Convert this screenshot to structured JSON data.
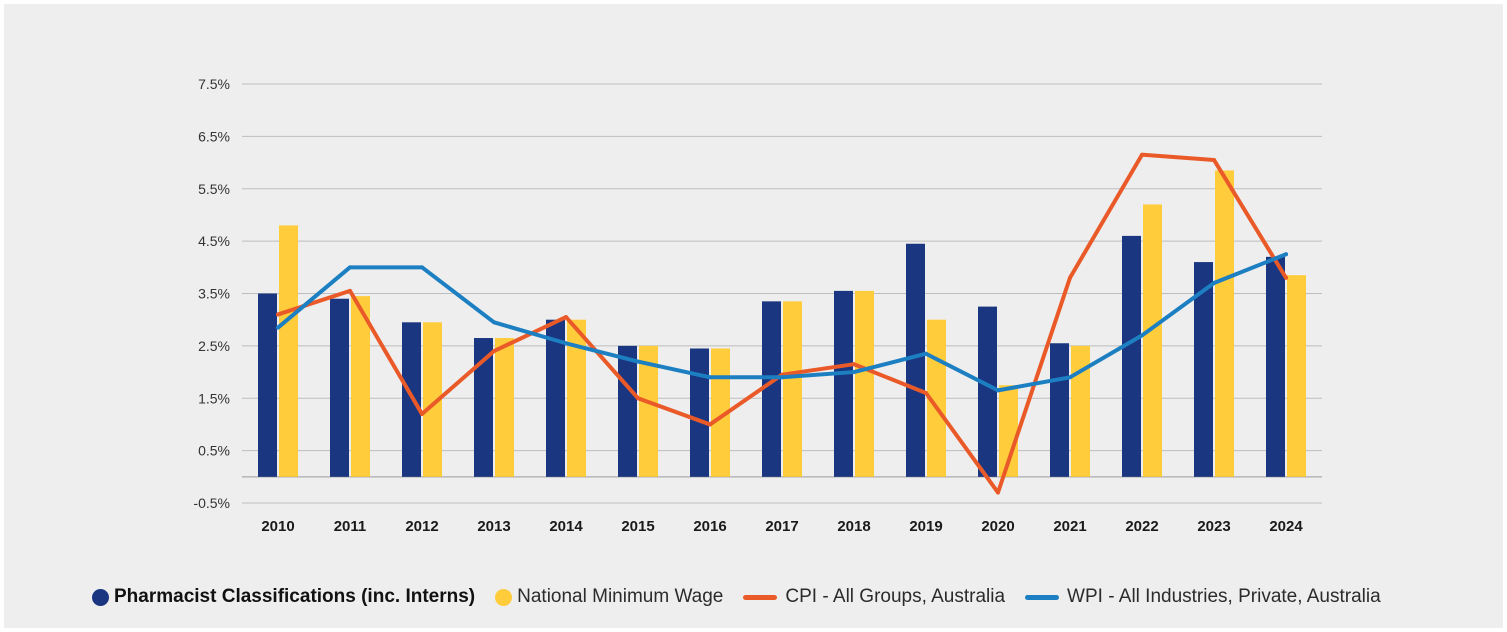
{
  "chart_data": {
    "type": "bar",
    "title": "",
    "xlabel": "",
    "ylabel": "",
    "categories": [
      "2010",
      "2011",
      "2012",
      "2013",
      "2014",
      "2015",
      "2016",
      "2017",
      "2018",
      "2019",
      "2020",
      "2021",
      "2022",
      "2023",
      "2024"
    ],
    "yticks": [
      "-0.5%",
      "0.5%",
      "1.5%",
      "2.5%",
      "3.5%",
      "4.5%",
      "5.5%",
      "6.5%",
      "7.5%"
    ],
    "ylim": [
      -0.5,
      7.5
    ],
    "grid": true,
    "legend_position": "bottom",
    "series": [
      {
        "name": "Pharmacist Classifications (inc. Interns)",
        "kind": "bar",
        "color": "#1b3680",
        "values": [
          3.5,
          3.4,
          2.95,
          2.65,
          3.0,
          2.5,
          2.45,
          3.35,
          3.55,
          4.45,
          3.25,
          2.55,
          4.6,
          4.1,
          4.2
        ]
      },
      {
        "name": "National Minimum Wage",
        "kind": "bar",
        "color": "#ffcc3c",
        "values": [
          4.8,
          3.45,
          2.95,
          2.65,
          3.0,
          2.5,
          2.45,
          3.35,
          3.55,
          3.0,
          1.75,
          2.5,
          5.2,
          5.85,
          3.85
        ]
      },
      {
        "name": "CPI - All Groups, Australia",
        "kind": "line",
        "color": "#ea5a28",
        "values": [
          3.1,
          3.55,
          1.2,
          2.4,
          3.05,
          1.5,
          1.0,
          1.95,
          2.15,
          1.6,
          -0.3,
          3.8,
          6.15,
          6.05,
          3.8
        ]
      },
      {
        "name": "WPI - All Industries, Private, Australia",
        "kind": "line",
        "color": "#1c7fc2",
        "values": [
          2.85,
          4.0,
          4.0,
          2.95,
          2.55,
          2.2,
          1.9,
          1.9,
          2.0,
          2.35,
          1.65,
          1.9,
          2.7,
          3.7,
          4.25
        ]
      }
    ]
  }
}
